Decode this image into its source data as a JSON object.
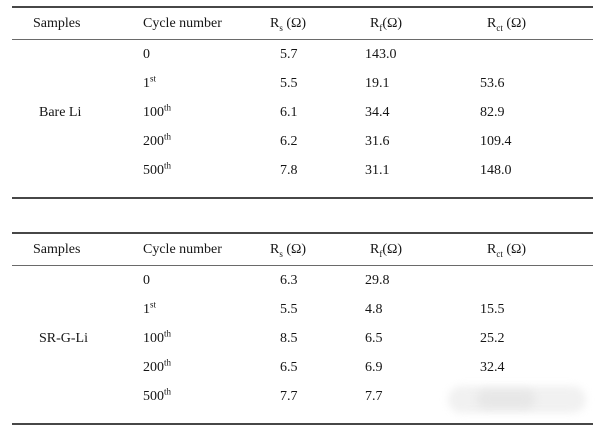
{
  "theme": {
    "rule_color": "#474747",
    "text_color": "#151515",
    "watermark_color": "#e7e7e7"
  },
  "columns": {
    "samples": "Samples",
    "cycle": "Cycle number",
    "rs": {
      "pre": "R",
      "sub": "s",
      "post": " (Ω)"
    },
    "rf": {
      "pre": "R",
      "sub": "f",
      "post": "(Ω)"
    },
    "rct": {
      "pre": "R",
      "sub": "ct",
      "post": " (Ω)"
    }
  },
  "tables": [
    {
      "sample": "Bare Li",
      "rows": [
        {
          "cycle_num": "0",
          "cycle_sup": "",
          "rs": "5.7",
          "rf": "143.0",
          "rct": ""
        },
        {
          "cycle_num": "1",
          "cycle_sup": "st",
          "rs": "5.5",
          "rf": "19.1",
          "rct": "53.6"
        },
        {
          "cycle_num": "100",
          "cycle_sup": "th",
          "rs": "6.1",
          "rf": "34.4",
          "rct": "82.9"
        },
        {
          "cycle_num": "200",
          "cycle_sup": "th",
          "rs": "6.2",
          "rf": "31.6",
          "rct": "109.4"
        },
        {
          "cycle_num": "500",
          "cycle_sup": "th",
          "rs": "7.8",
          "rf": "31.1",
          "rct": "148.0"
        }
      ]
    },
    {
      "sample": "SR-G-Li",
      "rows": [
        {
          "cycle_num": "0",
          "cycle_sup": "",
          "rs": "6.3",
          "rf": "29.8",
          "rct": ""
        },
        {
          "cycle_num": "1",
          "cycle_sup": "st",
          "rs": "5.5",
          "rf": "4.8",
          "rct": "15.5"
        },
        {
          "cycle_num": "100",
          "cycle_sup": "th",
          "rs": "8.5",
          "rf": "6.5",
          "rct": "25.2"
        },
        {
          "cycle_num": "200",
          "cycle_sup": "th",
          "rs": "6.5",
          "rf": "6.9",
          "rct": "32.4"
        },
        {
          "cycle_num": "500",
          "cycle_sup": "th",
          "rs": "7.7",
          "rf": "7.7",
          "rct": ""
        }
      ]
    }
  ]
}
